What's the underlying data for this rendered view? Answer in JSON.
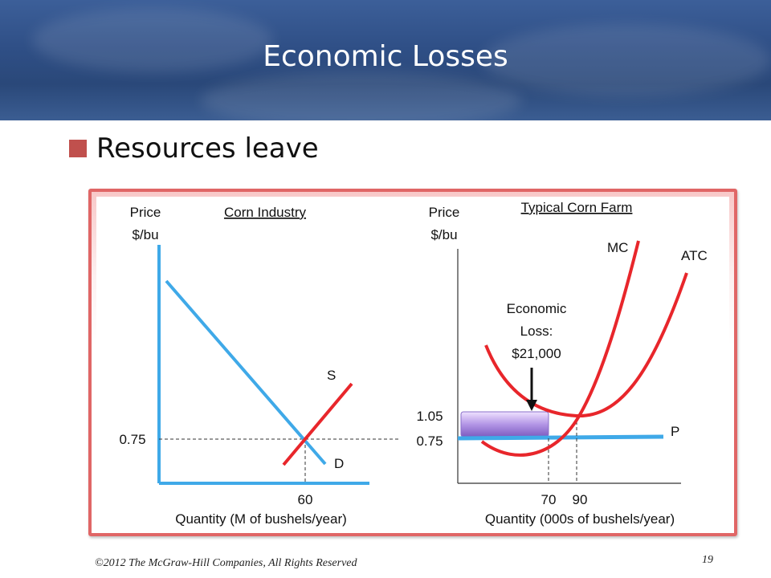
{
  "slide": {
    "title": "Economic Losses",
    "bullet": "Resources leave",
    "copyright": "©2012 The McGraw-Hill Companies, All Rights Reserved",
    "page_number": "19"
  },
  "left_graph": {
    "title": "Corn Industry",
    "y_label_1": "Price",
    "y_label_2": "$/bu",
    "x_label": "Quantity (M of bushels/year)",
    "price_tick": "0.75",
    "quantity_tick": "60",
    "supply_label": "S",
    "demand_label": "D"
  },
  "right_graph": {
    "title": "Typical Corn Farm",
    "y_label_1": "Price",
    "y_label_2": "$/bu",
    "x_label": "Quantity (000s of bushels/year)",
    "price_tick_high": "1.05",
    "price_tick_low": "0.75",
    "quantity_tick_1": "70",
    "quantity_tick_2": "90",
    "mc_label": "MC",
    "atc_label": "ATC",
    "price_line_label": "P",
    "loss_label_1": "Economic",
    "loss_label_2": "Loss:",
    "loss_label_3": "$21,000"
  },
  "colors": {
    "axis": "#3fa9e8",
    "supply_curve": "#e8262b",
    "demand_curve": "#3fa9e8",
    "loss_box": "#a98be0",
    "accent_bullet": "#c0504d",
    "banner": "#2f4f86"
  }
}
